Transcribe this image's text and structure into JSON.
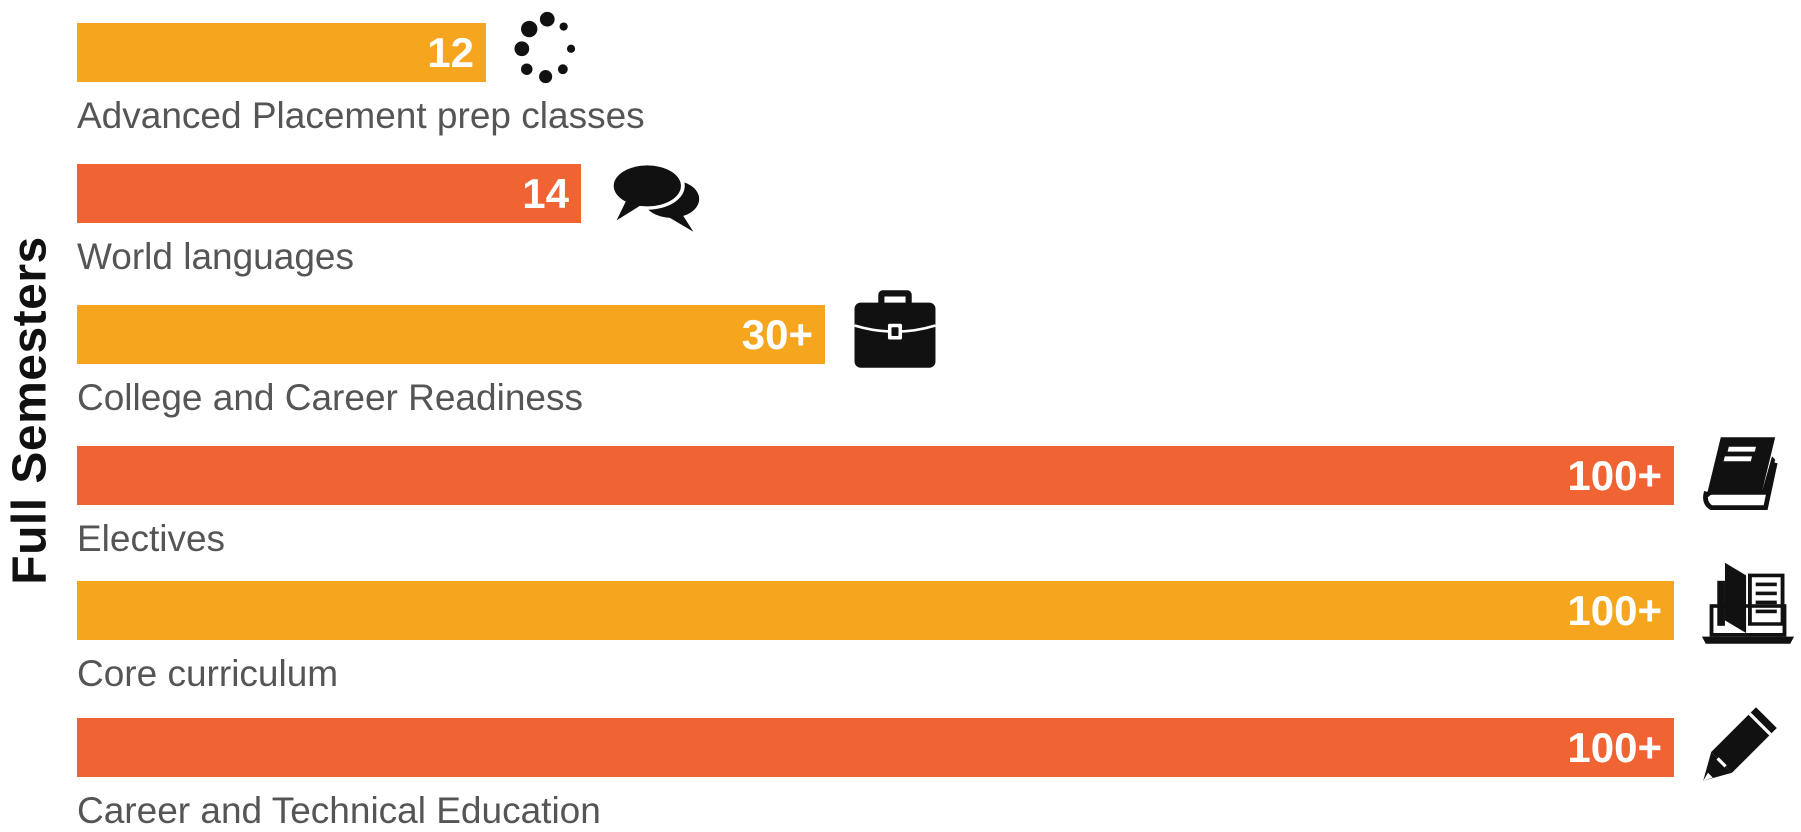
{
  "chart_data": {
    "type": "bar",
    "orientation": "horizontal",
    "ylabel": "Full Semesters",
    "xlim": [
      0,
      100
    ],
    "grid": false,
    "legend": "none",
    "categories": [
      "Advanced Placement prep classes",
      "World languages",
      "College and Career Readiness",
      "Electives",
      "Core curriculum",
      "Career and Technical Education"
    ],
    "values": [
      12,
      14,
      30,
      100,
      100,
      100
    ],
    "data_labels": [
      "12",
      "14",
      "30+",
      "100+",
      "100+",
      "100+"
    ],
    "bar_colors": [
      "#F6A51E",
      "#F06433",
      "#F6A51E",
      "#F06433",
      "#F6A51E",
      "#F06433"
    ],
    "icons": [
      "loading-dots-icon",
      "speech-bubbles-icon",
      "briefcase-icon",
      "book-icon",
      "laptop-book-icon",
      "pencil-icon"
    ]
  }
}
